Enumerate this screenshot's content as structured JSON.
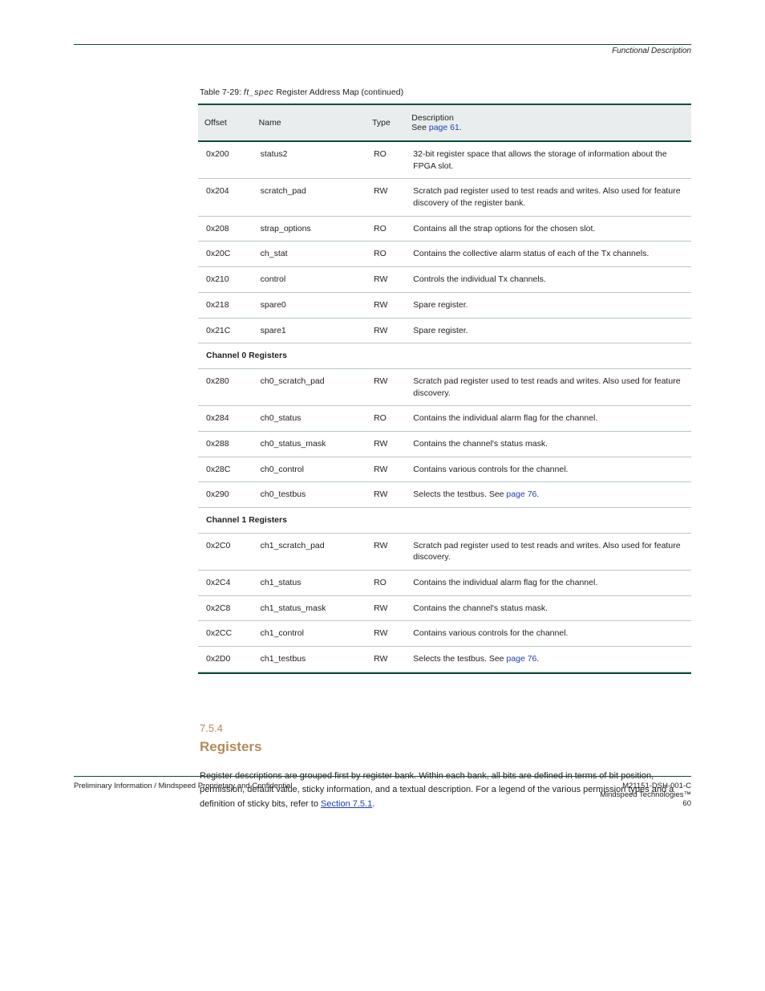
{
  "header": {
    "right": "Functional Description"
  },
  "table": {
    "title": "Table 7-29: ft_spec Register Address Map (continued)",
    "columns": [
      "Offset",
      "Name",
      "Type",
      "Description"
    ],
    "desc_suffix": {
      "text_prefix": "See ",
      "link_text": "page 61",
      "text_suffix": "."
    },
    "rows": [
      {
        "offset": "0x200",
        "name": "status2",
        "type": "RO",
        "desc": "32-bit register space that allows the storage of information about the FPGA slot."
      },
      {
        "offset": "0x204",
        "name": "scratch_pad",
        "type": "RW",
        "desc": "Scratch pad register used to test reads and writes. Also used for feature discovery of the register bank."
      },
      {
        "offset": "0x208",
        "name": "strap_options",
        "type": "RO",
        "desc": "Contains all the strap options for the chosen slot."
      },
      {
        "offset": "0x20C",
        "name": "ch_stat",
        "type": "RO",
        "desc": "Contains the collective alarm status of each of the Tx channels."
      },
      {
        "offset": "0x210",
        "name": "control",
        "type": "RW",
        "desc": "Controls the individual Tx channels."
      },
      {
        "offset": "0x218",
        "name": "spare0",
        "type": "RW",
        "desc": "Spare register."
      },
      {
        "offset": "0x21C",
        "name": "spare1",
        "type": "RW",
        "desc": "Spare register."
      }
    ],
    "section0": "Channel 0 Registers",
    "rows0": [
      {
        "offset": "0x280",
        "name": "ch0_scratch_pad",
        "type": "RW",
        "desc": "Scratch pad register used to test reads and writes. Also used for feature discovery."
      },
      {
        "offset": "0x284",
        "name": "ch0_status",
        "type": "RO",
        "desc": "Contains the individual alarm flag for the channel."
      },
      {
        "offset": "0x288",
        "name": "ch0_status_mask",
        "type": "RW",
        "desc": "Contains the channel's status mask."
      },
      {
        "offset": "0x28C",
        "name": "ch0_control",
        "type": "RW",
        "desc": "Contains various controls for the channel."
      },
      {
        "offset": "0x290",
        "name": "ch0_testbus",
        "type": "RW",
        "desc_plain": "Selects the testbus. See ",
        "desc_page": "page 76",
        "desc_tail": "."
      }
    ],
    "section1": "Channel 1 Registers",
    "rows1": [
      {
        "offset": "0x2C0",
        "name": "ch1_scratch_pad",
        "type": "RW",
        "desc": "Scratch pad register used to test reads and writes. Also used for feature discovery."
      },
      {
        "offset": "0x2C4",
        "name": "ch1_status",
        "type": "RO",
        "desc": "Contains the individual alarm flag for the channel."
      },
      {
        "offset": "0x2C8",
        "name": "ch1_status_mask",
        "type": "RW",
        "desc": "Contains the channel's status mask."
      },
      {
        "offset": "0x2CC",
        "name": "ch1_control",
        "type": "RW",
        "desc": "Contains various controls for the channel."
      },
      {
        "offset": "0x2D0",
        "name": "ch1_testbus",
        "type": "RW",
        "desc_plain": "Selects the testbus. See ",
        "desc_page": "page 76",
        "desc_tail": "."
      }
    ]
  },
  "section": {
    "num": "7.5.4",
    "title": "Registers",
    "body_before": "Register descriptions are grouped first by register bank. Within each bank, all bits are defined in terms of bit position, permission, default value, sticky information, and a textual description. For a legend of the various permission types and a definition of sticky bits, refer to ",
    "figref": "Section 7.5.1",
    "body_after": "."
  },
  "footer": {
    "left": "Preliminary Information / Mindspeed Proprietary and Confidential",
    "right_doc": "M21151-DSH-001-C",
    "right_copy": "Mindspeed Technologies™",
    "right_page": "60"
  }
}
